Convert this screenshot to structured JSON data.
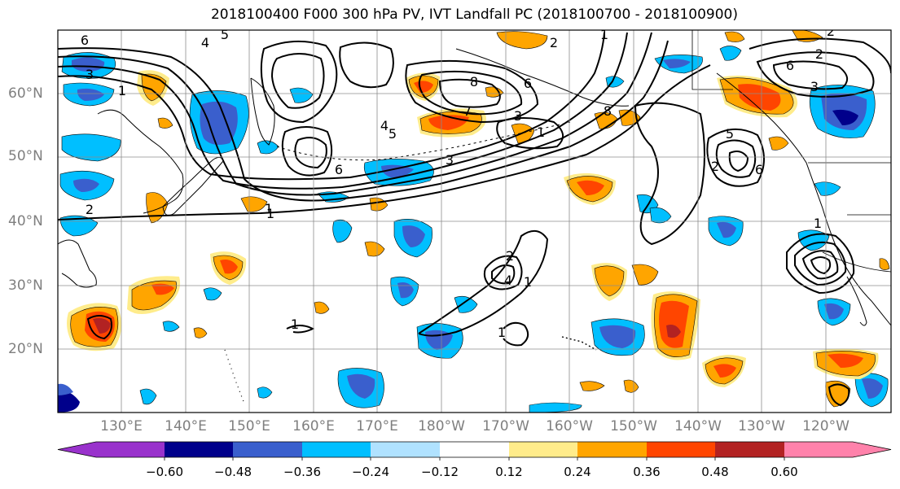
{
  "title": "2018100400 F000 300 hPa PV, IVT Landfall PC (2018100700 - 2018100900)",
  "lat_labels": [
    "60°N",
    "50°N",
    "40°N",
    "30°N",
    "20°N"
  ],
  "lon_labels": [
    "130°E",
    "140°E",
    "150°E",
    "160°E",
    "170°E",
    "180°W",
    "170°W",
    "160°W",
    "150°W",
    "140°W",
    "130°W",
    "120°W"
  ],
  "colorbar": {
    "ticks": [
      "−0.60",
      "−0.48",
      "−0.36",
      "−0.24",
      "−0.12",
      "0.12",
      "0.24",
      "0.36",
      "0.48",
      "0.60"
    ],
    "colors": [
      "#9932cc",
      "#00008b",
      "#3a5fcd",
      "#00bfff",
      "#b0e2ff",
      "#ffffff",
      "#ffec8b",
      "#ffa500",
      "#ff4500",
      "#b22222",
      "#ff82ab"
    ]
  },
  "contour_labels": [
    "6",
    "4",
    "5",
    "1",
    "3",
    "2",
    "1",
    "4",
    "5",
    "1",
    "6",
    "8",
    "7",
    "6",
    "3",
    "2",
    "1",
    "1",
    "8",
    "6",
    "2",
    "6",
    "5",
    "6",
    "3",
    "2",
    "1",
    "2",
    "4",
    "1",
    "1",
    "1",
    "2",
    "3"
  ],
  "colors": {
    "negative_fill": "#3a5fcd",
    "negative_outer": "#00bfff",
    "positive_fill": "#ff4500",
    "positive_outer": "#ffa500",
    "positive_halo": "#ffec8b",
    "grid": "#8c8c8c",
    "contour": "#000000"
  }
}
